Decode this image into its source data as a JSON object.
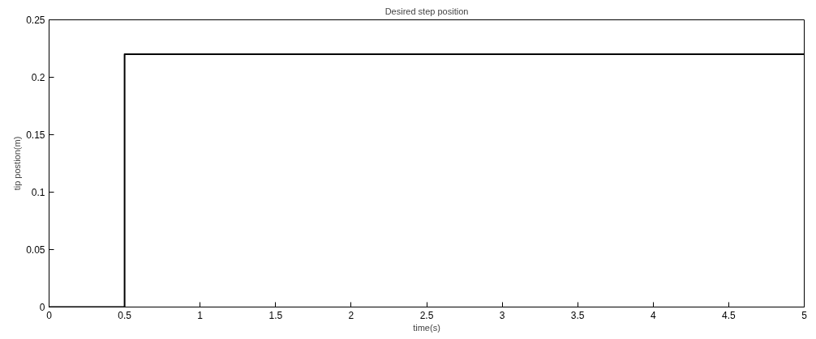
{
  "chart_data": {
    "type": "step",
    "title": "Desired step position",
    "xlabel": "time(s)",
    "ylabel": "tip postion(m)",
    "x": [
      0,
      0.5,
      5
    ],
    "series": [
      {
        "color": "#000000",
        "values": [
          0,
          0.22,
          0.22
        ]
      }
    ],
    "xlim": [
      0,
      5
    ],
    "ylim": [
      0,
      0.25
    ],
    "xticks": [
      0,
      0.5,
      1,
      1.5,
      2,
      2.5,
      3,
      3.5,
      4,
      4.5,
      5
    ],
    "yticks": [
      0,
      0.05,
      0.1,
      0.15,
      0.2,
      0.25
    ],
    "grid": false
  }
}
